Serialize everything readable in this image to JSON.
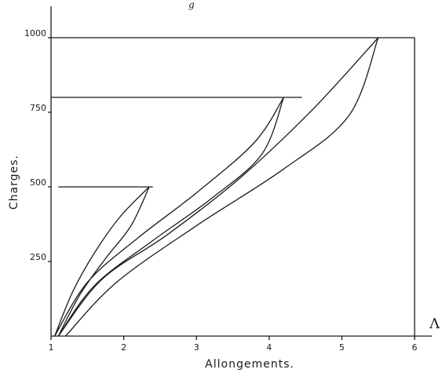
{
  "chart_data": {
    "type": "line",
    "xlabel": "Allongements.",
    "ylabel": "Charges.",
    "corner_label": "Λ",
    "header_mark": "g",
    "x_ticks": [
      "1",
      "2",
      "3",
      "4",
      "5",
      "6"
    ],
    "y_ticks": [
      "250",
      "500",
      "750",
      "1000"
    ],
    "xlim": [
      1,
      6
    ],
    "ylim": [
      0,
      1150
    ],
    "reference_lines": [
      {
        "y": 500,
        "x_start": 1.1,
        "x_end": 2.4
      },
      {
        "y": 800,
        "x_start": 1.0,
        "x_end": 4.45
      },
      {
        "y": 1000,
        "x_start": 1.0,
        "x_end": 6.0
      }
    ],
    "series": [
      {
        "points": [
          [
            1.05,
            0
          ],
          [
            1.3,
            150
          ],
          [
            1.6,
            280
          ],
          [
            1.95,
            400
          ],
          [
            2.35,
            500
          ]
        ]
      },
      {
        "points": [
          [
            1.1,
            0
          ],
          [
            1.4,
            140
          ],
          [
            1.75,
            260
          ],
          [
            2.1,
            370
          ],
          [
            2.35,
            500
          ]
        ]
      },
      {
        "points": [
          [
            1.05,
            0
          ],
          [
            1.5,
            180
          ],
          [
            2.2,
            330
          ],
          [
            3.0,
            480
          ],
          [
            3.8,
            650
          ],
          [
            4.2,
            800
          ]
        ]
      },
      {
        "points": [
          [
            1.1,
            0
          ],
          [
            1.6,
            170
          ],
          [
            2.4,
            320
          ],
          [
            3.2,
            460
          ],
          [
            3.9,
            610
          ],
          [
            4.2,
            800
          ]
        ]
      },
      {
        "points": [
          [
            1.1,
            0
          ],
          [
            1.7,
            190
          ],
          [
            2.6,
            340
          ],
          [
            3.6,
            530
          ],
          [
            4.6,
            760
          ],
          [
            5.5,
            1000
          ]
        ]
      },
      {
        "points": [
          [
            1.2,
            0
          ],
          [
            1.9,
            180
          ],
          [
            3.0,
            370
          ],
          [
            4.2,
            560
          ],
          [
            5.1,
            740
          ],
          [
            5.5,
            1000
          ]
        ]
      }
    ]
  }
}
